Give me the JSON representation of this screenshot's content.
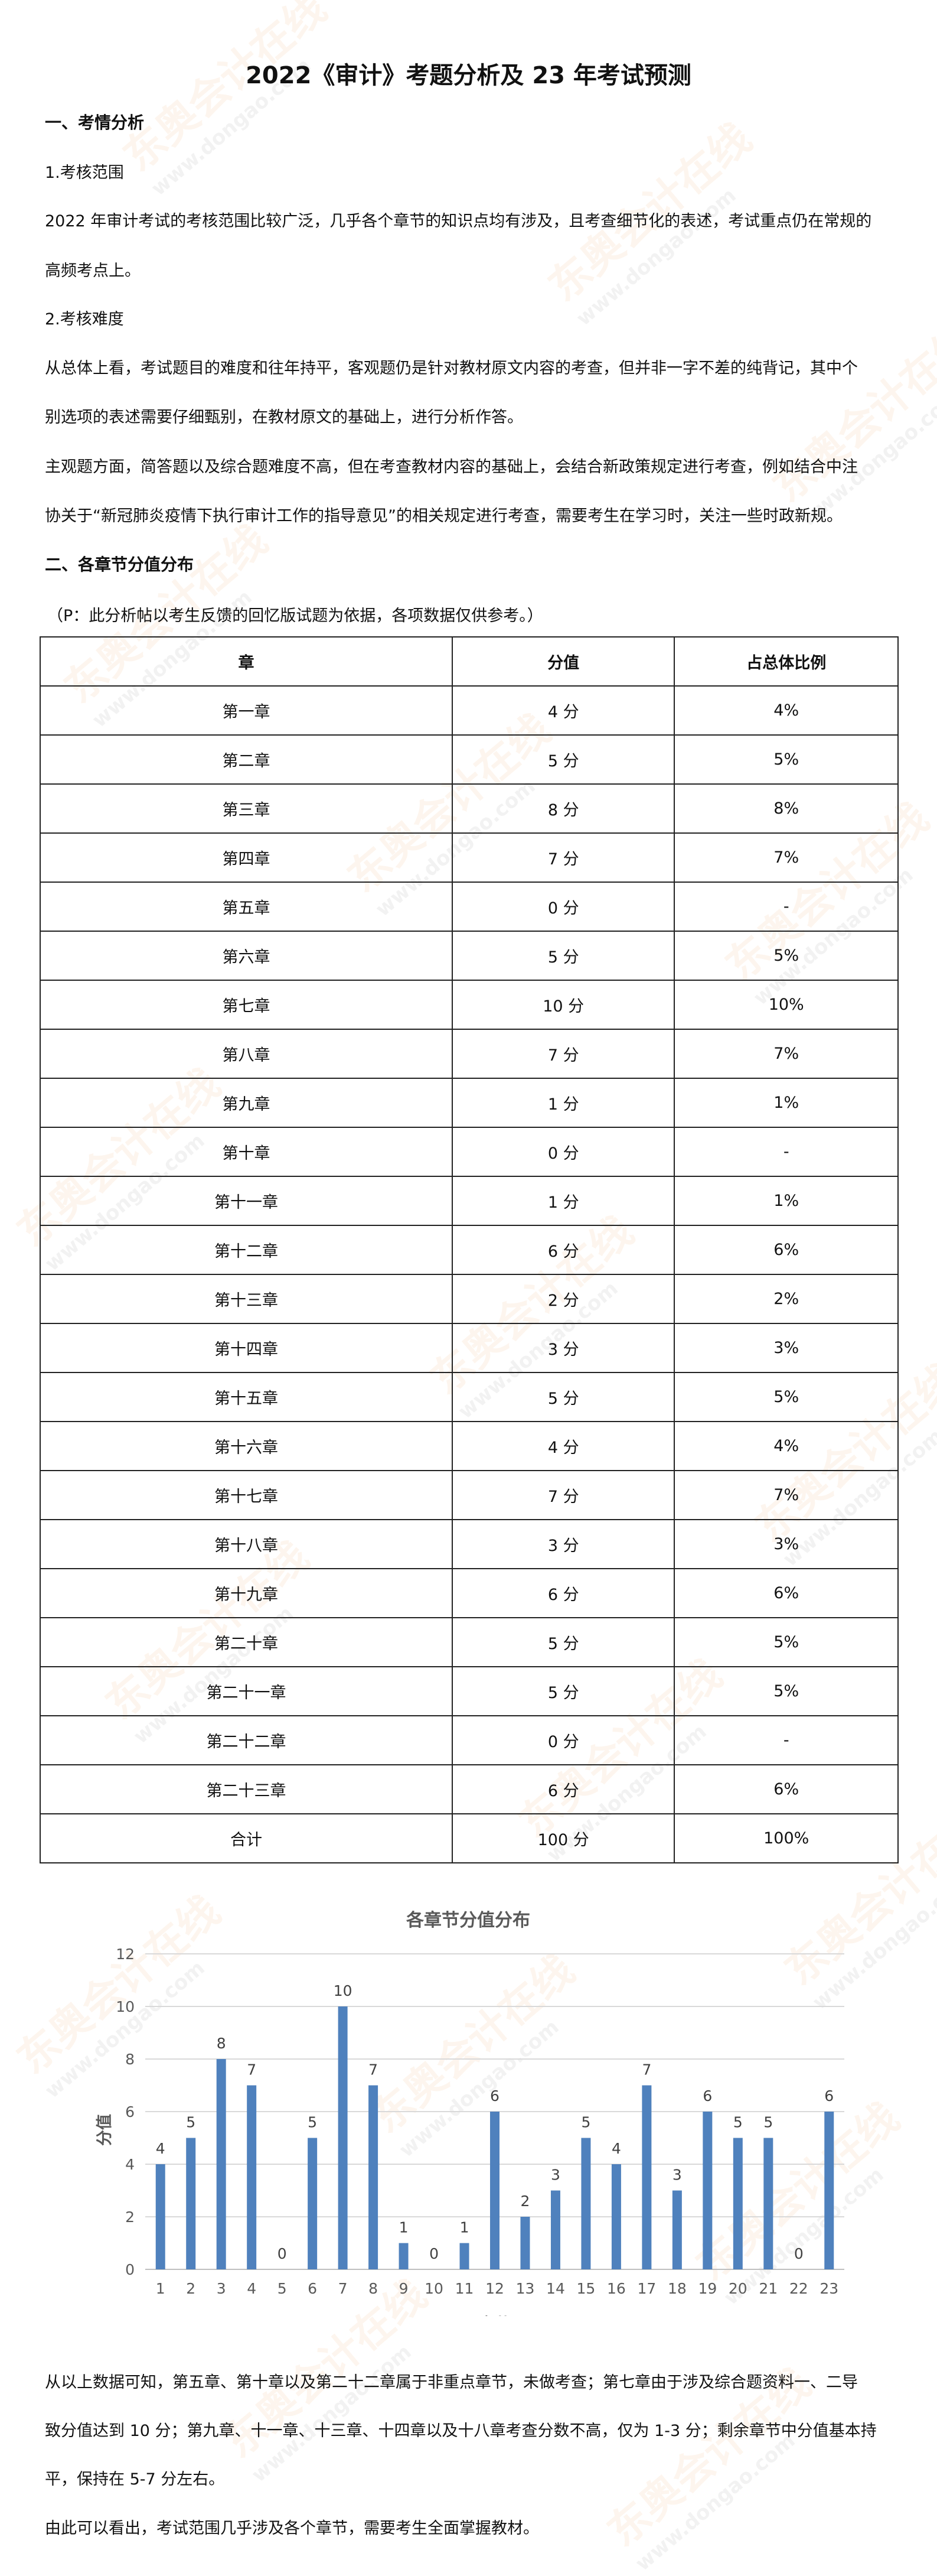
{
  "title": "2022《审计》考题分析及 23 年考试预测",
  "watermark": {
    "brand": "东奥会计在线",
    "url": "www.dongao.com"
  },
  "section1": {
    "heading": "一、考情分析",
    "sub1": "1.考核范围",
    "sub1_lines": [
      "2022 年审计考试的考核范围比较广泛，几乎各个章节的知识点均有涉及，且考查细节化的表述，考试重点仍在常规的",
      "高频考点上。"
    ],
    "sub2": "2.考核难度",
    "sub2_lines": [
      "从总体上看，考试题目的难度和往年持平，客观题仍是针对教材原文内容的考查，但并非一字不差的纯背记，其中个",
      "别选项的表述需要仔细甄别，在教材原文的基础上，进行分析作答。",
      "主观题方面，简答题以及综合题难度不高，但在考查教材内容的基础上，会结合新政策规定进行考查，例如结合中注",
      "协关于“新冠肺炎疫情下执行审计工作的指导意见”的相关规定进行考查，需要考生在学习时，关注一些时政新规。"
    ]
  },
  "section2": {
    "heading": "二、各章节分值分布",
    "note": "（P：此分析帖以考生反馈的回忆版试题为依据，各项数据仅供参考。）",
    "table": {
      "headers": [
        "章",
        "分值",
        "占总体比例"
      ],
      "rows": [
        [
          "第一章",
          "4 分",
          "4%"
        ],
        [
          "第二章",
          "5 分",
          "5%"
        ],
        [
          "第三章",
          "8 分",
          "8%"
        ],
        [
          "第四章",
          "7 分",
          "7%"
        ],
        [
          "第五章",
          "0 分",
          "-"
        ],
        [
          "第六章",
          "5 分",
          "5%"
        ],
        [
          "第七章",
          "10 分",
          "10%"
        ],
        [
          "第八章",
          "7 分",
          "7%"
        ],
        [
          "第九章",
          "1 分",
          "1%"
        ],
        [
          "第十章",
          "0 分",
          "-"
        ],
        [
          "第十一章",
          "1 分",
          "1%"
        ],
        [
          "第十二章",
          "6 分",
          "6%"
        ],
        [
          "第十三章",
          "2 分",
          "2%"
        ],
        [
          "第十四章",
          "3 分",
          "3%"
        ],
        [
          "第十五章",
          "5 分",
          "5%"
        ],
        [
          "第十六章",
          "4 分",
          "4%"
        ],
        [
          "第十七章",
          "7 分",
          "7%"
        ],
        [
          "第十八章",
          "3 分",
          "3%"
        ],
        [
          "第十九章",
          "6 分",
          "6%"
        ],
        [
          "第二十章",
          "5 分",
          "5%"
        ],
        [
          "第二十一章",
          "5 分",
          "5%"
        ],
        [
          "第二十二章",
          "0 分",
          "-"
        ],
        [
          "第二十三章",
          "6 分",
          "6%"
        ],
        [
          "合计",
          "100 分",
          "100%"
        ]
      ]
    }
  },
  "chart_data": {
    "type": "bar",
    "title": "各章节分值分布",
    "xlabel": "章节",
    "ylabel": "分值",
    "categories": [
      "1",
      "2",
      "3",
      "4",
      "5",
      "6",
      "7",
      "8",
      "9",
      "10",
      "11",
      "12",
      "13",
      "14",
      "15",
      "16",
      "17",
      "18",
      "19",
      "20",
      "21",
      "22",
      "23"
    ],
    "values": [
      4,
      5,
      8,
      7,
      0,
      5,
      10,
      7,
      1,
      0,
      1,
      6,
      2,
      3,
      5,
      4,
      7,
      3,
      6,
      5,
      5,
      0,
      6
    ],
    "ylim": [
      0,
      12
    ],
    "yticks": [
      0,
      2,
      4,
      6,
      8,
      10,
      12
    ],
    "grid": true,
    "data_labels": true,
    "bar_color": "#4f81bd"
  },
  "conclusion_lines": [
    "从以上数据可知，第五章、第十章以及第二十二章属于非重点章节，未做考查；第七章由于涉及综合题资料一、二导",
    "致分值达到 10 分；第九章、十一章、十三章、十四章以及十八章考查分数不高，仅为 1-3 分；剩余章节中分值基本持",
    "平，保持在 5-7 分左右。",
    "由此可以看出，考试范围几乎涉及各个章节，需要考生全面掌握教材。"
  ]
}
